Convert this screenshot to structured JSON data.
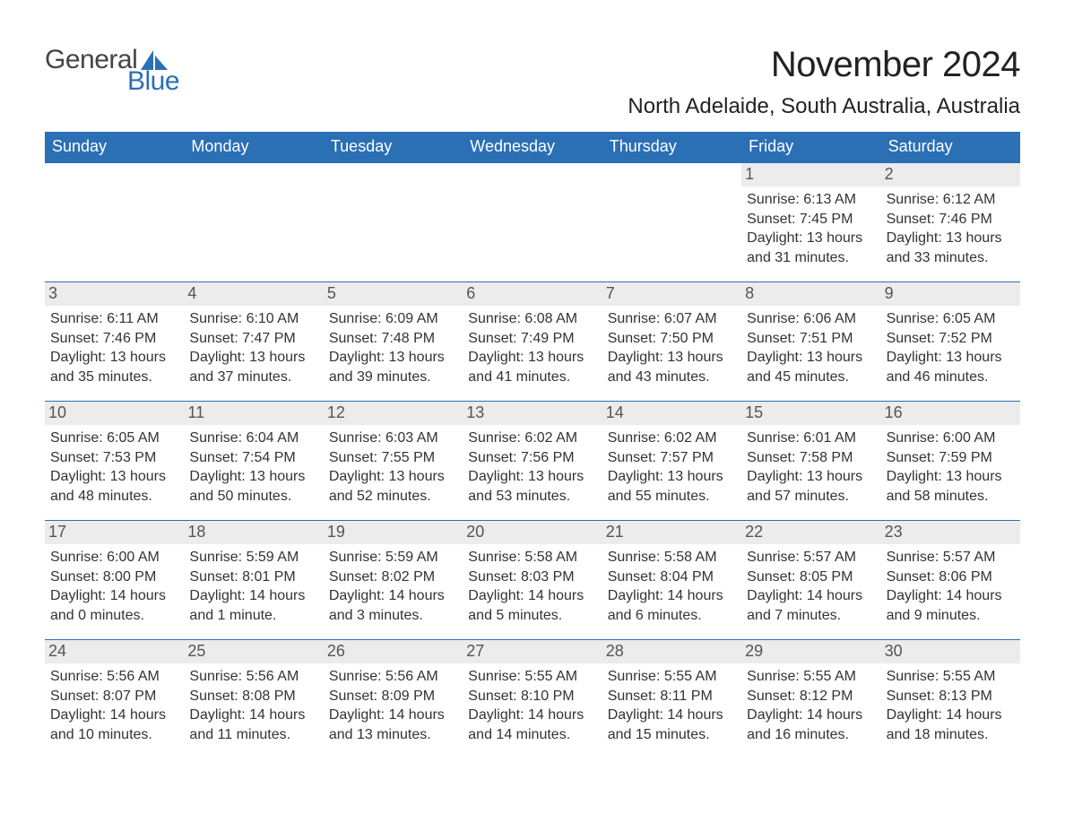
{
  "logo": {
    "text1": "General",
    "text2": "Blue",
    "sail_color": "#2b6fb5"
  },
  "title": "November 2024",
  "location": "North Adelaide, South Australia, Australia",
  "colors": {
    "header_bg": "#2b6fb5",
    "header_text": "#ffffff",
    "daynum_bg": "#ececec",
    "daynum_text": "#555555",
    "rule": "#2b6fb5",
    "body_text": "#333333",
    "page_bg": "#ffffff"
  },
  "day_headers": [
    "Sunday",
    "Monday",
    "Tuesday",
    "Wednesday",
    "Thursday",
    "Friday",
    "Saturday"
  ],
  "weeks": [
    [
      {
        "day": "",
        "empty": true
      },
      {
        "day": "",
        "empty": true
      },
      {
        "day": "",
        "empty": true
      },
      {
        "day": "",
        "empty": true
      },
      {
        "day": "",
        "empty": true
      },
      {
        "day": "1",
        "sunrise": "Sunrise: 6:13 AM",
        "sunset": "Sunset: 7:45 PM",
        "daylight1": "Daylight: 13 hours",
        "daylight2": "and 31 minutes."
      },
      {
        "day": "2",
        "sunrise": "Sunrise: 6:12 AM",
        "sunset": "Sunset: 7:46 PM",
        "daylight1": "Daylight: 13 hours",
        "daylight2": "and 33 minutes."
      }
    ],
    [
      {
        "day": "3",
        "sunrise": "Sunrise: 6:11 AM",
        "sunset": "Sunset: 7:46 PM",
        "daylight1": "Daylight: 13 hours",
        "daylight2": "and 35 minutes."
      },
      {
        "day": "4",
        "sunrise": "Sunrise: 6:10 AM",
        "sunset": "Sunset: 7:47 PM",
        "daylight1": "Daylight: 13 hours",
        "daylight2": "and 37 minutes."
      },
      {
        "day": "5",
        "sunrise": "Sunrise: 6:09 AM",
        "sunset": "Sunset: 7:48 PM",
        "daylight1": "Daylight: 13 hours",
        "daylight2": "and 39 minutes."
      },
      {
        "day": "6",
        "sunrise": "Sunrise: 6:08 AM",
        "sunset": "Sunset: 7:49 PM",
        "daylight1": "Daylight: 13 hours",
        "daylight2": "and 41 minutes."
      },
      {
        "day": "7",
        "sunrise": "Sunrise: 6:07 AM",
        "sunset": "Sunset: 7:50 PM",
        "daylight1": "Daylight: 13 hours",
        "daylight2": "and 43 minutes."
      },
      {
        "day": "8",
        "sunrise": "Sunrise: 6:06 AM",
        "sunset": "Sunset: 7:51 PM",
        "daylight1": "Daylight: 13 hours",
        "daylight2": "and 45 minutes."
      },
      {
        "day": "9",
        "sunrise": "Sunrise: 6:05 AM",
        "sunset": "Sunset: 7:52 PM",
        "daylight1": "Daylight: 13 hours",
        "daylight2": "and 46 minutes."
      }
    ],
    [
      {
        "day": "10",
        "sunrise": "Sunrise: 6:05 AM",
        "sunset": "Sunset: 7:53 PM",
        "daylight1": "Daylight: 13 hours",
        "daylight2": "and 48 minutes."
      },
      {
        "day": "11",
        "sunrise": "Sunrise: 6:04 AM",
        "sunset": "Sunset: 7:54 PM",
        "daylight1": "Daylight: 13 hours",
        "daylight2": "and 50 minutes."
      },
      {
        "day": "12",
        "sunrise": "Sunrise: 6:03 AM",
        "sunset": "Sunset: 7:55 PM",
        "daylight1": "Daylight: 13 hours",
        "daylight2": "and 52 minutes."
      },
      {
        "day": "13",
        "sunrise": "Sunrise: 6:02 AM",
        "sunset": "Sunset: 7:56 PM",
        "daylight1": "Daylight: 13 hours",
        "daylight2": "and 53 minutes."
      },
      {
        "day": "14",
        "sunrise": "Sunrise: 6:02 AM",
        "sunset": "Sunset: 7:57 PM",
        "daylight1": "Daylight: 13 hours",
        "daylight2": "and 55 minutes."
      },
      {
        "day": "15",
        "sunrise": "Sunrise: 6:01 AM",
        "sunset": "Sunset: 7:58 PM",
        "daylight1": "Daylight: 13 hours",
        "daylight2": "and 57 minutes."
      },
      {
        "day": "16",
        "sunrise": "Sunrise: 6:00 AM",
        "sunset": "Sunset: 7:59 PM",
        "daylight1": "Daylight: 13 hours",
        "daylight2": "and 58 minutes."
      }
    ],
    [
      {
        "day": "17",
        "sunrise": "Sunrise: 6:00 AM",
        "sunset": "Sunset: 8:00 PM",
        "daylight1": "Daylight: 14 hours",
        "daylight2": "and 0 minutes."
      },
      {
        "day": "18",
        "sunrise": "Sunrise: 5:59 AM",
        "sunset": "Sunset: 8:01 PM",
        "daylight1": "Daylight: 14 hours",
        "daylight2": "and 1 minute."
      },
      {
        "day": "19",
        "sunrise": "Sunrise: 5:59 AM",
        "sunset": "Sunset: 8:02 PM",
        "daylight1": "Daylight: 14 hours",
        "daylight2": "and 3 minutes."
      },
      {
        "day": "20",
        "sunrise": "Sunrise: 5:58 AM",
        "sunset": "Sunset: 8:03 PM",
        "daylight1": "Daylight: 14 hours",
        "daylight2": "and 5 minutes."
      },
      {
        "day": "21",
        "sunrise": "Sunrise: 5:58 AM",
        "sunset": "Sunset: 8:04 PM",
        "daylight1": "Daylight: 14 hours",
        "daylight2": "and 6 minutes."
      },
      {
        "day": "22",
        "sunrise": "Sunrise: 5:57 AM",
        "sunset": "Sunset: 8:05 PM",
        "daylight1": "Daylight: 14 hours",
        "daylight2": "and 7 minutes."
      },
      {
        "day": "23",
        "sunrise": "Sunrise: 5:57 AM",
        "sunset": "Sunset: 8:06 PM",
        "daylight1": "Daylight: 14 hours",
        "daylight2": "and 9 minutes."
      }
    ],
    [
      {
        "day": "24",
        "sunrise": "Sunrise: 5:56 AM",
        "sunset": "Sunset: 8:07 PM",
        "daylight1": "Daylight: 14 hours",
        "daylight2": "and 10 minutes."
      },
      {
        "day": "25",
        "sunrise": "Sunrise: 5:56 AM",
        "sunset": "Sunset: 8:08 PM",
        "daylight1": "Daylight: 14 hours",
        "daylight2": "and 11 minutes."
      },
      {
        "day": "26",
        "sunrise": "Sunrise: 5:56 AM",
        "sunset": "Sunset: 8:09 PM",
        "daylight1": "Daylight: 14 hours",
        "daylight2": "and 13 minutes."
      },
      {
        "day": "27",
        "sunrise": "Sunrise: 5:55 AM",
        "sunset": "Sunset: 8:10 PM",
        "daylight1": "Daylight: 14 hours",
        "daylight2": "and 14 minutes."
      },
      {
        "day": "28",
        "sunrise": "Sunrise: 5:55 AM",
        "sunset": "Sunset: 8:11 PM",
        "daylight1": "Daylight: 14 hours",
        "daylight2": "and 15 minutes."
      },
      {
        "day": "29",
        "sunrise": "Sunrise: 5:55 AM",
        "sunset": "Sunset: 8:12 PM",
        "daylight1": "Daylight: 14 hours",
        "daylight2": "and 16 minutes."
      },
      {
        "day": "30",
        "sunrise": "Sunrise: 5:55 AM",
        "sunset": "Sunset: 8:13 PM",
        "daylight1": "Daylight: 14 hours",
        "daylight2": "and 18 minutes."
      }
    ]
  ]
}
